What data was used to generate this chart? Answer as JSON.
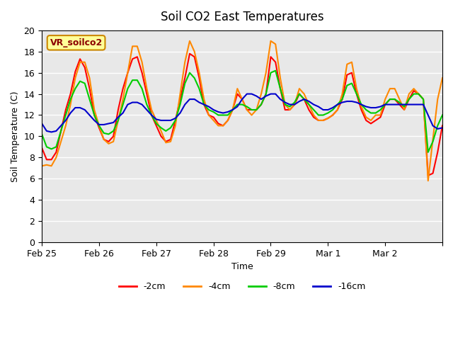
{
  "title": "Soil CO2 East Temperatures",
  "xlabel": "Time",
  "ylabel": "Soil Temperature (C)",
  "ylim": [
    0,
    20
  ],
  "yticks": [
    0,
    2,
    4,
    6,
    8,
    10,
    12,
    14,
    16,
    18,
    20
  ],
  "bg_color": "#e8e8e8",
  "fig_bg_color": "#ffffff",
  "annotation_text": "VR_soilco2",
  "annotation_bg": "#ffff99",
  "annotation_border": "#cc8800",
  "annotation_text_color": "#8b0000",
  "colors": {
    "-2cm": "#ff0000",
    "-4cm": "#ff8800",
    "-8cm": "#00cc00",
    "-16cm": "#0000cc"
  },
  "legend_labels": [
    "-2cm",
    "-4cm",
    "-8cm",
    "-16cm"
  ],
  "x_start": 0,
  "x_end": 168,
  "x_ticks": [
    0,
    24,
    48,
    72,
    96,
    120,
    144,
    168
  ],
  "x_tick_labels": [
    "Feb 25",
    "Feb 26",
    "Feb 27",
    "Feb 28",
    "Feb 29",
    "Mar 1",
    "Mar 2",
    ""
  ],
  "series_2cm": [
    [
      0,
      8.9
    ],
    [
      2,
      7.8
    ],
    [
      4,
      7.8
    ],
    [
      6,
      8.5
    ],
    [
      8,
      10.5
    ],
    [
      10,
      12.5
    ],
    [
      12,
      14.0
    ],
    [
      14,
      16.1
    ],
    [
      16,
      17.3
    ],
    [
      18,
      16.5
    ],
    [
      20,
      14.5
    ],
    [
      22,
      12.0
    ],
    [
      24,
      10.8
    ],
    [
      26,
      9.7
    ],
    [
      28,
      9.5
    ],
    [
      30,
      10.0
    ],
    [
      32,
      12.5
    ],
    [
      34,
      14.5
    ],
    [
      36,
      16.0
    ],
    [
      38,
      17.3
    ],
    [
      40,
      17.5
    ],
    [
      42,
      16.0
    ],
    [
      44,
      14.0
    ],
    [
      46,
      12.0
    ],
    [
      48,
      11.0
    ],
    [
      50,
      10.0
    ],
    [
      52,
      9.5
    ],
    [
      54,
      9.7
    ],
    [
      56,
      11.5
    ],
    [
      58,
      13.5
    ],
    [
      60,
      15.5
    ],
    [
      62,
      17.8
    ],
    [
      64,
      17.5
    ],
    [
      66,
      15.5
    ],
    [
      68,
      13.0
    ],
    [
      70,
      12.0
    ],
    [
      72,
      11.8
    ],
    [
      74,
      11.2
    ],
    [
      76,
      11.0
    ],
    [
      78,
      11.5
    ],
    [
      80,
      12.5
    ],
    [
      82,
      14.0
    ],
    [
      84,
      13.5
    ],
    [
      86,
      12.5
    ],
    [
      88,
      12.5
    ],
    [
      90,
      12.5
    ],
    [
      92,
      13.0
    ],
    [
      94,
      14.0
    ],
    [
      96,
      17.5
    ],
    [
      98,
      17.0
    ],
    [
      100,
      14.5
    ],
    [
      102,
      12.5
    ],
    [
      104,
      12.5
    ],
    [
      106,
      13.0
    ],
    [
      108,
      14.0
    ],
    [
      110,
      13.5
    ],
    [
      112,
      12.5
    ],
    [
      114,
      11.8
    ],
    [
      116,
      11.5
    ],
    [
      118,
      11.5
    ],
    [
      120,
      11.7
    ],
    [
      122,
      12.0
    ],
    [
      124,
      12.5
    ],
    [
      126,
      13.5
    ],
    [
      128,
      15.8
    ],
    [
      130,
      16.0
    ],
    [
      132,
      14.0
    ],
    [
      134,
      12.5
    ],
    [
      136,
      11.5
    ],
    [
      138,
      11.2
    ],
    [
      140,
      11.5
    ],
    [
      142,
      11.8
    ],
    [
      144,
      13.0
    ],
    [
      146,
      13.5
    ],
    [
      148,
      13.5
    ],
    [
      150,
      13.0
    ],
    [
      152,
      12.5
    ],
    [
      154,
      13.5
    ],
    [
      156,
      14.3
    ],
    [
      158,
      14.0
    ],
    [
      160,
      13.5
    ],
    [
      162,
      6.3
    ],
    [
      164,
      6.5
    ],
    [
      166,
      8.5
    ],
    [
      168,
      11.0
    ]
  ],
  "series_4cm": [
    [
      0,
      7.2
    ],
    [
      2,
      7.3
    ],
    [
      4,
      7.2
    ],
    [
      6,
      8.0
    ],
    [
      8,
      9.5
    ],
    [
      10,
      11.0
    ],
    [
      12,
      13.0
    ],
    [
      14,
      15.5
    ],
    [
      16,
      17.0
    ],
    [
      18,
      17.0
    ],
    [
      20,
      15.5
    ],
    [
      22,
      12.5
    ],
    [
      24,
      11.0
    ],
    [
      26,
      9.7
    ],
    [
      28,
      9.3
    ],
    [
      30,
      9.5
    ],
    [
      32,
      11.5
    ],
    [
      34,
      13.5
    ],
    [
      36,
      16.0
    ],
    [
      38,
      18.5
    ],
    [
      40,
      18.5
    ],
    [
      42,
      17.0
    ],
    [
      44,
      14.5
    ],
    [
      46,
      12.5
    ],
    [
      48,
      11.5
    ],
    [
      50,
      10.5
    ],
    [
      52,
      9.4
    ],
    [
      54,
      9.5
    ],
    [
      56,
      11.0
    ],
    [
      58,
      14.0
    ],
    [
      60,
      17.0
    ],
    [
      62,
      19.0
    ],
    [
      64,
      18.0
    ],
    [
      66,
      16.0
    ],
    [
      68,
      13.5
    ],
    [
      70,
      12.0
    ],
    [
      72,
      11.5
    ],
    [
      74,
      11.0
    ],
    [
      76,
      11.0
    ],
    [
      78,
      11.5
    ],
    [
      80,
      12.5
    ],
    [
      82,
      14.5
    ],
    [
      84,
      13.5
    ],
    [
      86,
      12.5
    ],
    [
      88,
      12.0
    ],
    [
      90,
      12.5
    ],
    [
      92,
      14.0
    ],
    [
      94,
      16.0
    ],
    [
      96,
      19.0
    ],
    [
      98,
      18.7
    ],
    [
      100,
      15.5
    ],
    [
      102,
      13.0
    ],
    [
      104,
      12.5
    ],
    [
      106,
      13.0
    ],
    [
      108,
      14.5
    ],
    [
      110,
      14.0
    ],
    [
      112,
      13.0
    ],
    [
      114,
      12.0
    ],
    [
      116,
      11.5
    ],
    [
      118,
      11.5
    ],
    [
      120,
      11.7
    ],
    [
      122,
      12.0
    ],
    [
      124,
      12.5
    ],
    [
      126,
      14.0
    ],
    [
      128,
      16.8
    ],
    [
      130,
      17.0
    ],
    [
      132,
      14.5
    ],
    [
      134,
      12.8
    ],
    [
      136,
      11.8
    ],
    [
      138,
      11.5
    ],
    [
      140,
      12.0
    ],
    [
      142,
      12.0
    ],
    [
      144,
      13.5
    ],
    [
      146,
      14.5
    ],
    [
      148,
      14.5
    ],
    [
      150,
      13.5
    ],
    [
      152,
      12.5
    ],
    [
      154,
      14.0
    ],
    [
      156,
      14.5
    ],
    [
      158,
      14.0
    ],
    [
      160,
      13.5
    ],
    [
      162,
      5.8
    ],
    [
      164,
      9.7
    ],
    [
      166,
      13.5
    ],
    [
      168,
      15.5
    ]
  ],
  "series_8cm": [
    [
      0,
      10.2
    ],
    [
      2,
      9.0
    ],
    [
      4,
      8.8
    ],
    [
      6,
      9.0
    ],
    [
      8,
      10.5
    ],
    [
      10,
      12.0
    ],
    [
      12,
      13.5
    ],
    [
      14,
      14.5
    ],
    [
      16,
      15.2
    ],
    [
      18,
      15.0
    ],
    [
      20,
      13.5
    ],
    [
      22,
      12.0
    ],
    [
      24,
      11.0
    ],
    [
      26,
      10.3
    ],
    [
      28,
      10.2
    ],
    [
      30,
      10.5
    ],
    [
      32,
      11.5
    ],
    [
      34,
      13.0
    ],
    [
      36,
      14.5
    ],
    [
      38,
      15.3
    ],
    [
      40,
      15.3
    ],
    [
      42,
      14.5
    ],
    [
      44,
      13.0
    ],
    [
      46,
      12.0
    ],
    [
      48,
      11.2
    ],
    [
      50,
      10.8
    ],
    [
      52,
      10.5
    ],
    [
      54,
      10.8
    ],
    [
      56,
      11.5
    ],
    [
      58,
      13.0
    ],
    [
      60,
      15.0
    ],
    [
      62,
      16.0
    ],
    [
      64,
      15.5
    ],
    [
      66,
      14.5
    ],
    [
      68,
      13.0
    ],
    [
      70,
      12.5
    ],
    [
      72,
      12.3
    ],
    [
      74,
      12.0
    ],
    [
      76,
      12.0
    ],
    [
      78,
      12.0
    ],
    [
      80,
      12.5
    ],
    [
      82,
      13.0
    ],
    [
      84,
      13.0
    ],
    [
      86,
      12.8
    ],
    [
      88,
      12.5
    ],
    [
      90,
      12.5
    ],
    [
      92,
      13.0
    ],
    [
      94,
      14.0
    ],
    [
      96,
      16.0
    ],
    [
      98,
      16.2
    ],
    [
      100,
      14.5
    ],
    [
      102,
      13.0
    ],
    [
      104,
      12.8
    ],
    [
      106,
      13.2
    ],
    [
      108,
      14.0
    ],
    [
      110,
      13.5
    ],
    [
      112,
      13.0
    ],
    [
      114,
      12.5
    ],
    [
      116,
      12.0
    ],
    [
      118,
      12.0
    ],
    [
      120,
      12.2
    ],
    [
      122,
      12.5
    ],
    [
      124,
      13.0
    ],
    [
      126,
      13.5
    ],
    [
      128,
      14.8
    ],
    [
      130,
      15.0
    ],
    [
      132,
      14.0
    ],
    [
      134,
      13.0
    ],
    [
      136,
      12.5
    ],
    [
      138,
      12.2
    ],
    [
      140,
      12.2
    ],
    [
      142,
      12.5
    ],
    [
      144,
      13.0
    ],
    [
      146,
      13.5
    ],
    [
      148,
      13.5
    ],
    [
      150,
      13.2
    ],
    [
      152,
      12.8
    ],
    [
      154,
      13.5
    ],
    [
      156,
      14.0
    ],
    [
      158,
      14.0
    ],
    [
      160,
      13.5
    ],
    [
      162,
      8.5
    ],
    [
      164,
      9.5
    ],
    [
      166,
      11.0
    ],
    [
      168,
      12.0
    ]
  ],
  "series_16cm": [
    [
      0,
      11.2
    ],
    [
      2,
      10.5
    ],
    [
      4,
      10.4
    ],
    [
      6,
      10.5
    ],
    [
      8,
      11.0
    ],
    [
      10,
      11.5
    ],
    [
      12,
      12.2
    ],
    [
      14,
      12.7
    ],
    [
      16,
      12.7
    ],
    [
      18,
      12.5
    ],
    [
      20,
      12.0
    ],
    [
      22,
      11.5
    ],
    [
      24,
      11.1
    ],
    [
      26,
      11.1
    ],
    [
      28,
      11.2
    ],
    [
      30,
      11.3
    ],
    [
      32,
      11.8
    ],
    [
      34,
      12.2
    ],
    [
      36,
      13.0
    ],
    [
      38,
      13.2
    ],
    [
      40,
      13.2
    ],
    [
      42,
      13.0
    ],
    [
      44,
      12.5
    ],
    [
      46,
      12.0
    ],
    [
      48,
      11.6
    ],
    [
      50,
      11.5
    ],
    [
      52,
      11.5
    ],
    [
      54,
      11.5
    ],
    [
      56,
      11.7
    ],
    [
      58,
      12.2
    ],
    [
      60,
      13.0
    ],
    [
      62,
      13.5
    ],
    [
      64,
      13.5
    ],
    [
      66,
      13.2
    ],
    [
      68,
      13.0
    ],
    [
      70,
      12.8
    ],
    [
      72,
      12.5
    ],
    [
      74,
      12.3
    ],
    [
      76,
      12.2
    ],
    [
      78,
      12.3
    ],
    [
      80,
      12.5
    ],
    [
      82,
      12.8
    ],
    [
      84,
      13.5
    ],
    [
      86,
      14.0
    ],
    [
      88,
      14.0
    ],
    [
      90,
      13.8
    ],
    [
      92,
      13.5
    ],
    [
      94,
      13.8
    ],
    [
      96,
      14.0
    ],
    [
      98,
      14.0
    ],
    [
      100,
      13.5
    ],
    [
      102,
      13.2
    ],
    [
      104,
      13.0
    ],
    [
      106,
      13.0
    ],
    [
      108,
      13.3
    ],
    [
      110,
      13.5
    ],
    [
      112,
      13.3
    ],
    [
      114,
      13.0
    ],
    [
      116,
      12.8
    ],
    [
      118,
      12.5
    ],
    [
      120,
      12.5
    ],
    [
      122,
      12.7
    ],
    [
      124,
      13.0
    ],
    [
      126,
      13.2
    ],
    [
      128,
      13.3
    ],
    [
      130,
      13.3
    ],
    [
      132,
      13.2
    ],
    [
      134,
      13.0
    ],
    [
      136,
      12.8
    ],
    [
      138,
      12.7
    ],
    [
      140,
      12.7
    ],
    [
      142,
      12.8
    ],
    [
      144,
      13.0
    ],
    [
      146,
      13.0
    ],
    [
      148,
      13.0
    ],
    [
      150,
      13.0
    ],
    [
      152,
      13.0
    ],
    [
      154,
      13.0
    ],
    [
      156,
      13.0
    ],
    [
      158,
      13.0
    ],
    [
      160,
      13.0
    ],
    [
      162,
      12.0
    ],
    [
      164,
      11.0
    ],
    [
      166,
      10.7
    ],
    [
      168,
      10.8
    ]
  ]
}
